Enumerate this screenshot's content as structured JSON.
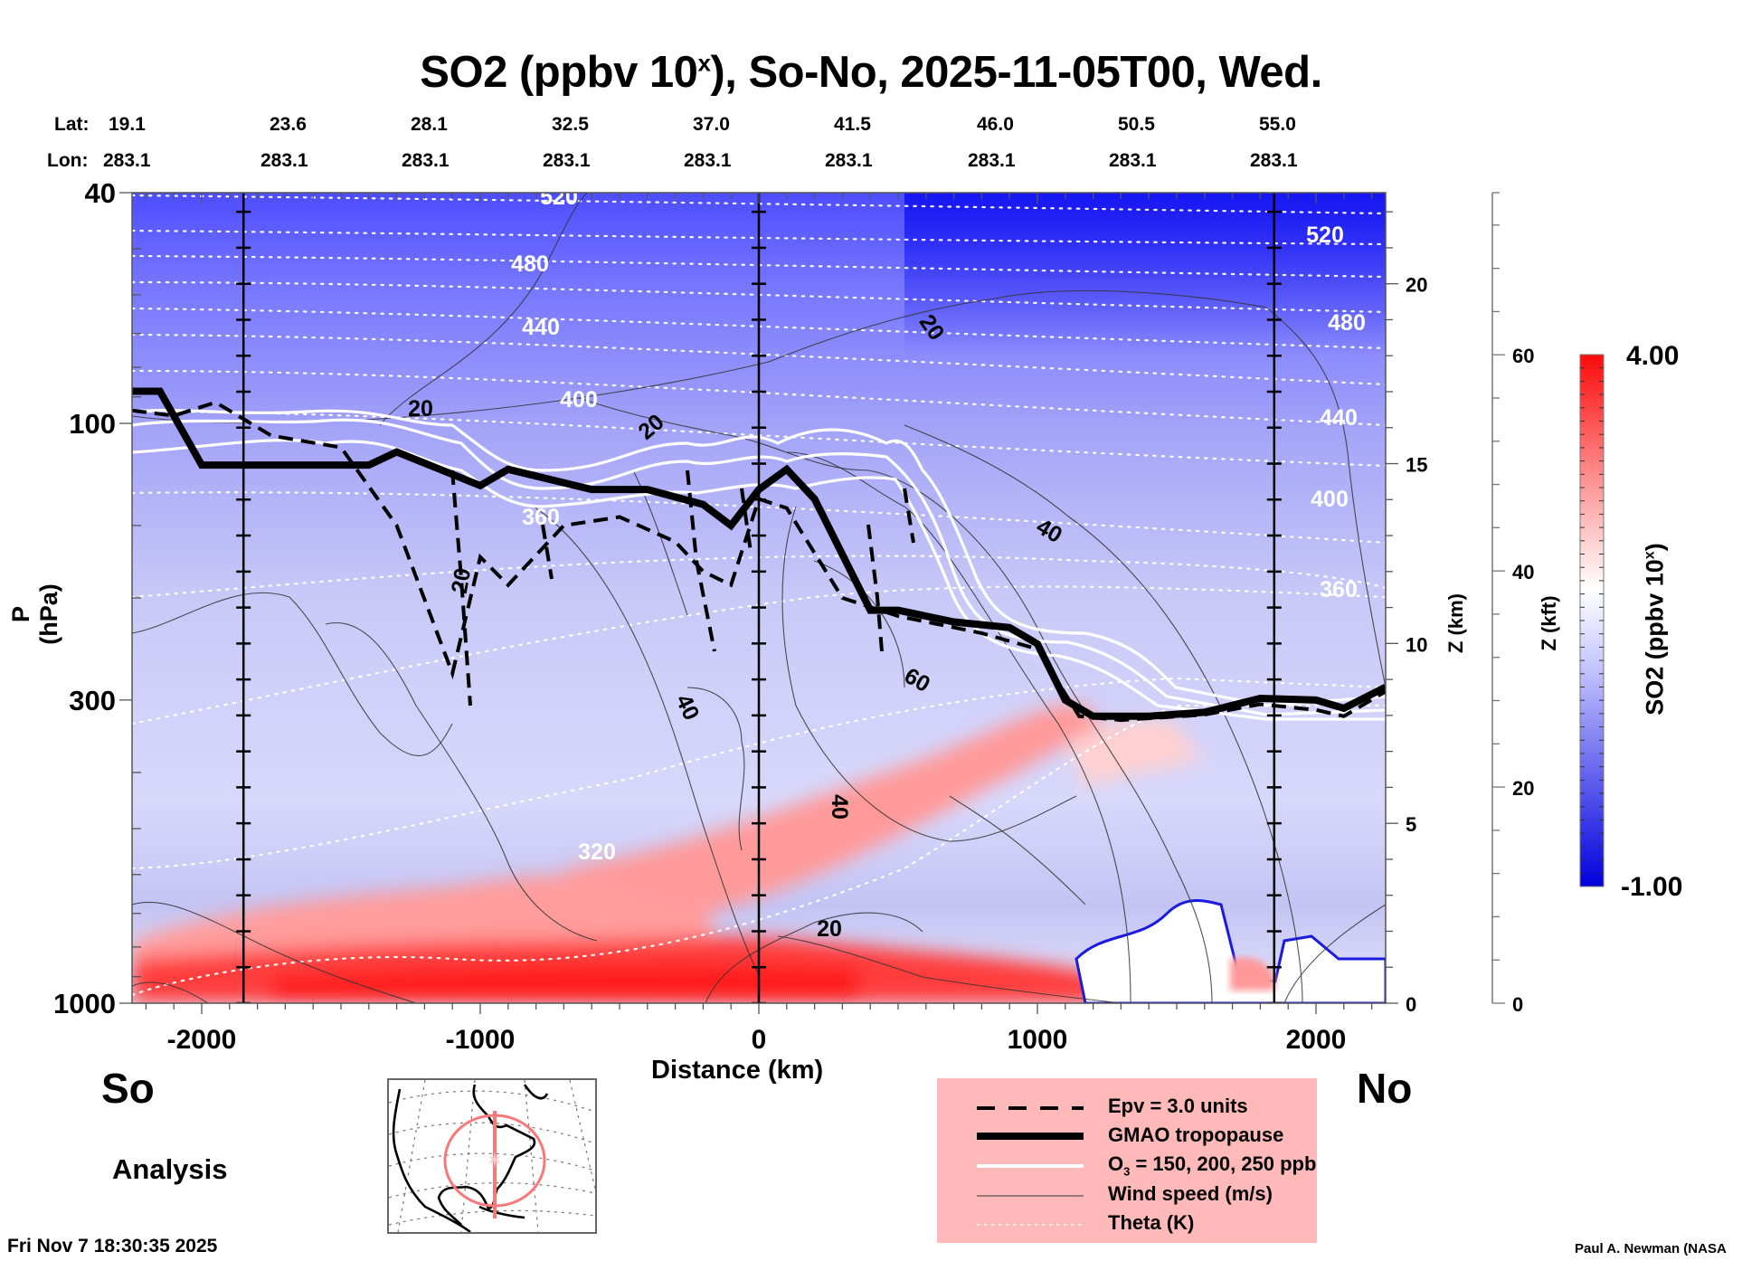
{
  "title": {
    "prefix": "SO2 (ppbv 10",
    "sup": "x",
    "suffix": "), So-No, 2025-11-05T00, Wed."
  },
  "header_rows": {
    "lat_label": "Lat:",
    "lon_label": "Lon:",
    "lats": [
      "19.1",
      "23.6",
      "28.1",
      "32.5",
      "37.0",
      "41.5",
      "46.0",
      "50.5",
      "55.0"
    ],
    "lons": [
      "283.1",
      "283.1",
      "283.1",
      "283.1",
      "283.1",
      "283.1",
      "283.1",
      "283.1",
      "283.1"
    ]
  },
  "ends": {
    "south": "So",
    "north": "No"
  },
  "analysis_label": "Analysis",
  "timestamp": "Fri Nov  7 18:30:35 2025",
  "credit": "Paul A. Newman (NASA",
  "legend": {
    "items": [
      {
        "label": "Epv = 3.0 units",
        "style": "dashed-black"
      },
      {
        "label": "GMAO tropopause",
        "style": "thick-black"
      },
      {
        "label_main": "O",
        "label_sub": "3",
        "label_rest": " = 150, 200, 250 ppb",
        "style": "white"
      },
      {
        "label": "Wind speed (m/s)",
        "style": "thin-gray"
      },
      {
        "label": "Theta (K)",
        "style": "dotted-white"
      }
    ]
  },
  "colors": {
    "so2_min": "#0000ee",
    "so2_mid": "#ffffff",
    "so2_max": "#ff0000",
    "legend_bg": "#ffb9b9",
    "map_track": "#f87878"
  },
  "chart_data": {
    "type": "heatmap",
    "title": "SO2 (ppbv 10^x), So-No, 2025-11-05T00, Wed.",
    "xlabel": "Distance (km)",
    "ylabel": "P (hPa)",
    "ylabel_right_km": "Z (km)",
    "ylabel_right_kft": "Z (kft)",
    "colorbar_label_prefix": "SO2 (ppbv 10",
    "colorbar_label_sup": "x",
    "colorbar_label_suffix": ")",
    "xlim": [
      -2250,
      2250
    ],
    "ylim_hpa": [
      1000,
      40
    ],
    "x_ticks": [
      -2000,
      -1000,
      0,
      1000,
      2000
    ],
    "x_tick_labels": [
      "-2000",
      "-1000",
      "0",
      "1000",
      "2000"
    ],
    "y_ticks_hpa": [
      40,
      100,
      300,
      1000
    ],
    "y_tick_labels_hpa": [
      "40",
      "100",
      "300",
      "1000"
    ],
    "z_km_ticks": [
      0,
      5,
      10,
      15,
      20
    ],
    "z_km_tick_labels": [
      "0",
      "5",
      "10",
      "15",
      "20"
    ],
    "z_kft_ticks": [
      0,
      20,
      40,
      60
    ],
    "z_kft_tick_labels": [
      "0",
      "20",
      "40",
      "60"
    ],
    "colorbar_range": [
      -1.0,
      4.0
    ],
    "colorbar_tick_labels": [
      "4.00",
      "-1.00"
    ],
    "vertical_marker_lines_km": [
      -1850,
      0,
      1850
    ],
    "theta_contours_K": [
      {
        "value": 520,
        "label": "520"
      },
      {
        "value": 480,
        "label": "480"
      },
      {
        "value": 440,
        "label": "440"
      },
      {
        "value": 400,
        "label": "400"
      },
      {
        "value": 360,
        "label": "360"
      },
      {
        "value": 320,
        "label": "320"
      }
    ],
    "wind_speed_labels_ms": [
      "20",
      "20",
      "20",
      "20",
      "40",
      "40",
      "40",
      "60",
      "20"
    ],
    "tropopause_hpa": {
      "x": [
        -2250,
        -2150,
        -2000,
        -1400,
        -1300,
        -1000,
        -900,
        -600,
        -400,
        -200,
        -100,
        0,
        100,
        200,
        400,
        500,
        700,
        900,
        1000,
        1100,
        1200,
        1400,
        1600,
        1800,
        2000,
        2100,
        2250
      ],
      "p": [
        88,
        88,
        118,
        118,
        112,
        128,
        120,
        130,
        130,
        138,
        150,
        130,
        120,
        135,
        210,
        210,
        220,
        225,
        240,
        300,
        320,
        320,
        315,
        298,
        300,
        310,
        285
      ]
    },
    "epv_3pvu_hpa": {
      "x": [
        -2250,
        -2100,
        -1950,
        -1750,
        -1500,
        -1300,
        -1100,
        -1000,
        -900,
        -700,
        -500,
        -300,
        -200,
        -100,
        0,
        100,
        300,
        500,
        800,
        1000,
        1150,
        1300,
        1600,
        1800,
        2000,
        2100,
        2250
      ],
      "p": [
        95,
        97,
        92,
        105,
        110,
        150,
        270,
        170,
        190,
        150,
        145,
        160,
        180,
        190,
        135,
        140,
        200,
        215,
        230,
        245,
        320,
        325,
        318,
        305,
        312,
        320,
        290
      ]
    }
  }
}
